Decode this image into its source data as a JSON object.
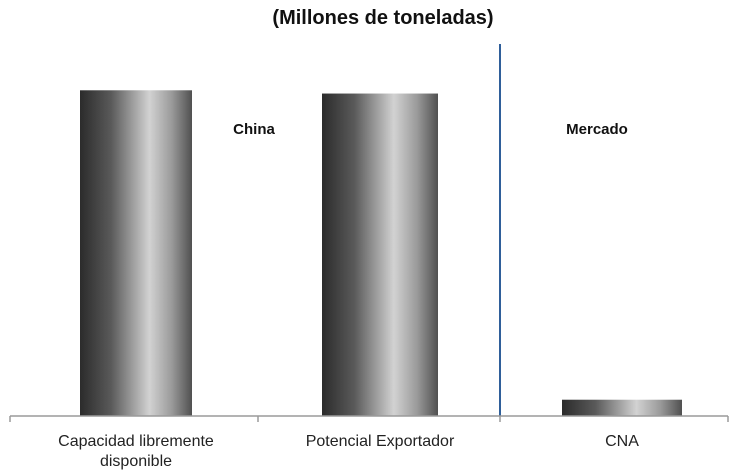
{
  "chart_data": {
    "type": "bar",
    "title": "(Millones de toneladas)",
    "categories": [
      [
        "Capacidad libremente",
        "disponible"
      ],
      [
        "Potencial Exportador"
      ],
      [
        "CNA"
      ]
    ],
    "values": [
      100,
      99,
      5
    ],
    "ylim": [
      0,
      105
    ],
    "grid": false,
    "sections": [
      {
        "label": "China",
        "categories": [
          0,
          1
        ]
      },
      {
        "label": "Mercado",
        "categories": [
          2
        ]
      }
    ],
    "colors": {
      "bar_dark": "#2b2b2b",
      "bar_mid": "#6a6a6a",
      "bar_light": "#cfcfcf",
      "divider": "#2f5f9a",
      "axis": "#9a9a9a"
    }
  }
}
